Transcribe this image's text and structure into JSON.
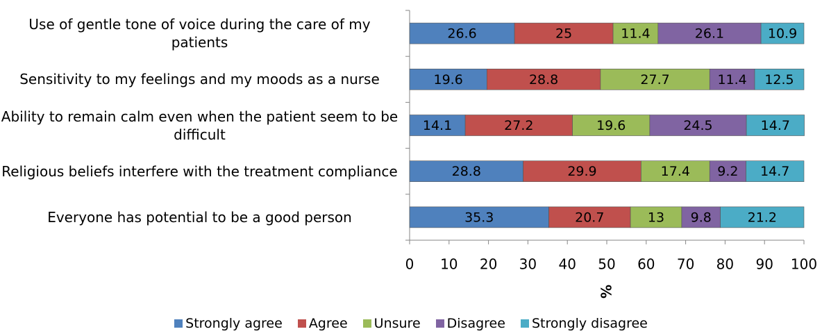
{
  "chart_data": {
    "type": "stacked-bar-horizontal",
    "categories": [
      "Use of gentle tone of voice during the care of my patients",
      "Sensitivity to my feelings and my moods as a nurse",
      "Ability to remain calm even when the patient seem to be difficult",
      "Religious beliefs interfere with the treatment compliance",
      "Everyone has potential to be a good person"
    ],
    "series": [
      {
        "name": "Strongly agree",
        "color": "#4f81bd",
        "values": [
          26.6,
          19.6,
          14.1,
          28.8,
          35.3
        ]
      },
      {
        "name": "Agree",
        "color": "#c0504d",
        "values": [
          25,
          28.8,
          27.2,
          29.9,
          20.7
        ]
      },
      {
        "name": "Unsure",
        "color": "#9bbb59",
        "values": [
          11.4,
          27.7,
          19.6,
          17.4,
          13
        ]
      },
      {
        "name": "Disagree",
        "color": "#8064a2",
        "values": [
          26.1,
          11.4,
          24.5,
          9.2,
          9.8
        ]
      },
      {
        "name": "Strongly disagree",
        "color": "#4bacc6",
        "values": [
          10.9,
          12.5,
          14.7,
          14.7,
          21.2
        ]
      }
    ],
    "xlabel": "%",
    "xlim": [
      0,
      100
    ],
    "xticks": [
      0,
      10,
      20,
      30,
      40,
      50,
      60,
      70,
      80,
      90,
      100
    ],
    "legend": "bottom"
  }
}
